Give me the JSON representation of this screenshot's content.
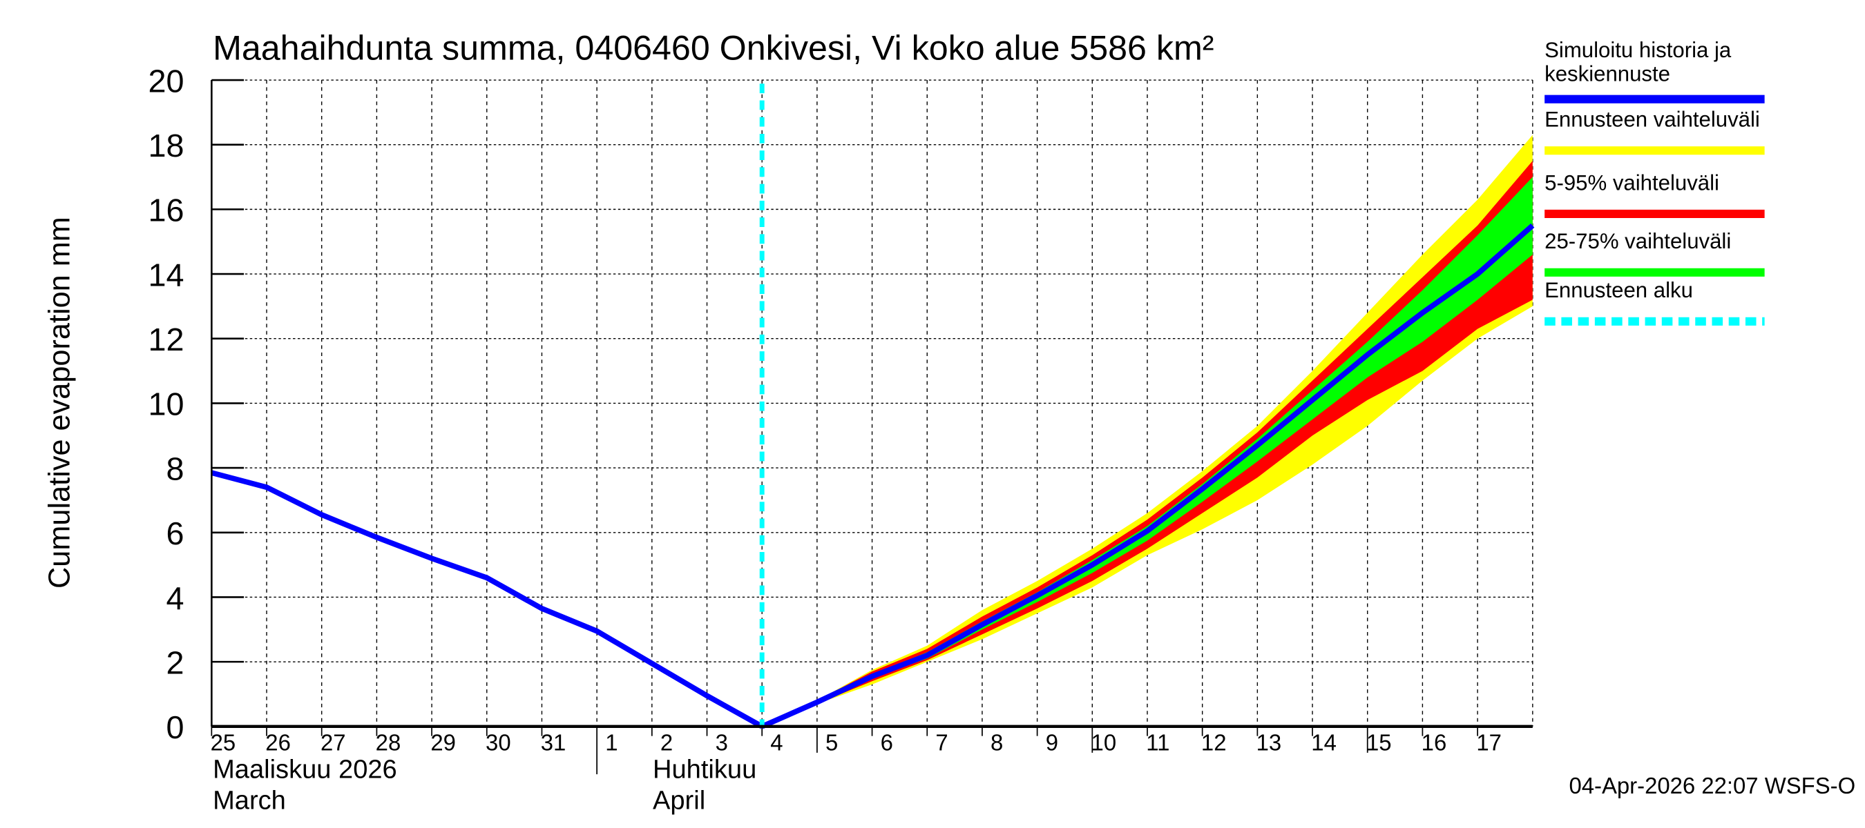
{
  "chart_data": {
    "type": "area",
    "title": "Maahaihdunta summa, 0406460 Onkivesi, Vi koko alue 5586 km²",
    "ylabel": "Cumulative evaporation   mm",
    "xlabel": "",
    "ylim": [
      0,
      20
    ],
    "yticks": [
      0,
      2,
      4,
      6,
      8,
      10,
      12,
      14,
      16,
      18,
      20
    ],
    "grid": true,
    "legend_placement": "right",
    "x_tick_labels": [
      "25",
      "26",
      "27",
      "28",
      "29",
      "30",
      "31",
      "1",
      "2",
      "3",
      "4",
      "5",
      "6",
      "7",
      "8",
      "9",
      "10",
      "11",
      "12",
      "13",
      "14",
      "15",
      "16",
      "17"
    ],
    "month_labels": [
      {
        "fi": "Maaliskuu 2026",
        "en": "March"
      },
      {
        "fi": "Huhtikuu",
        "en": "April"
      }
    ],
    "forecast_start_index": 10,
    "history": {
      "name": "Simuloitu historia ja keskiennuste",
      "x": [
        0,
        1,
        2,
        3,
        4,
        5,
        6,
        7,
        8,
        9,
        10
      ],
      "values": [
        7.85,
        7.4,
        6.55,
        5.85,
        5.2,
        4.6,
        3.65,
        2.95,
        1.95,
        0.95,
        0
      ]
    },
    "forecast_x": [
      10,
      11,
      12,
      13,
      14,
      15,
      16,
      17,
      18,
      19,
      20,
      21,
      22,
      23,
      24
    ],
    "median": [
      0,
      0.75,
      1.55,
      2.2,
      3.15,
      4.05,
      5.0,
      6.05,
      7.35,
      8.7,
      10.1,
      11.5,
      12.8,
      14.0,
      15.5
    ],
    "range_upper": [
      0,
      0.8,
      1.75,
      2.5,
      3.6,
      4.5,
      5.5,
      6.6,
      7.9,
      9.3,
      11.0,
      12.8,
      14.6,
      16.3,
      18.3
    ],
    "range_lower": [
      0,
      0.7,
      1.3,
      2.0,
      2.7,
      3.5,
      4.3,
      5.3,
      6.1,
      7.0,
      8.1,
      9.3,
      10.7,
      12.0,
      13.0
    ],
    "p95": [
      0,
      0.8,
      1.7,
      2.4,
      3.4,
      4.3,
      5.3,
      6.4,
      7.7,
      9.1,
      10.7,
      12.3,
      13.9,
      15.5,
      17.5
    ],
    "p05": [
      0,
      0.7,
      1.4,
      2.05,
      2.85,
      3.65,
      4.5,
      5.5,
      6.6,
      7.7,
      9.0,
      10.1,
      11.0,
      12.3,
      13.2
    ],
    "p75": [
      0,
      0.78,
      1.6,
      2.3,
      3.25,
      4.15,
      5.15,
      6.2,
      7.5,
      8.9,
      10.4,
      11.9,
      13.5,
      15.2,
      17.0
    ],
    "p25": [
      0,
      0.72,
      1.5,
      2.1,
      3.0,
      3.85,
      4.75,
      5.75,
      6.95,
      8.2,
      9.5,
      10.8,
      11.9,
      13.2,
      14.6
    ],
    "legend": [
      {
        "label": "Simuloitu historia ja",
        "label2": "keskiennuste",
        "color": "#0000ff",
        "style": "solid"
      },
      {
        "label": "Ennusteen vaihteluväli",
        "color": "#ffff00",
        "style": "solid"
      },
      {
        "label": "5-95% vaihteluväli",
        "color": "#ff0000",
        "style": "solid"
      },
      {
        "label": "25-75% vaihteluväli",
        "color": "#00ff00",
        "style": "solid"
      },
      {
        "label": "Ennusteen alku",
        "color": "#00ffff",
        "style": "dashed"
      }
    ],
    "footer": "04-Apr-2026 22:07 WSFS-O"
  }
}
